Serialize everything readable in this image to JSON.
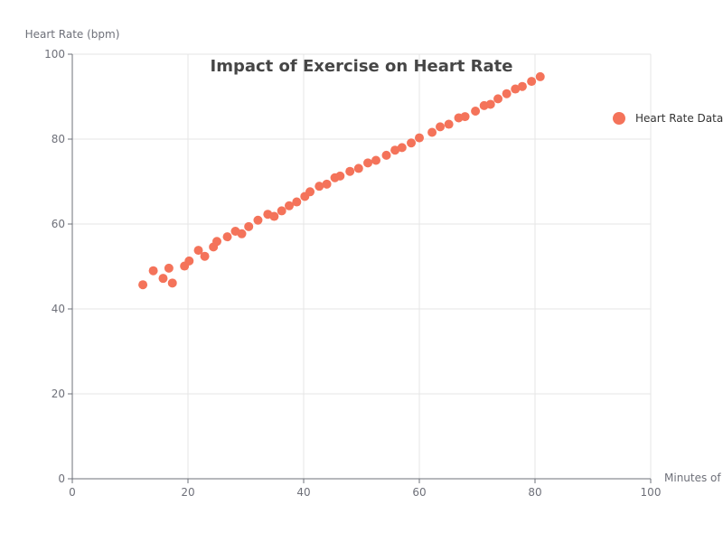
{
  "chart_data": {
    "type": "scatter",
    "title": "Impact of Exercise on Heart Rate",
    "xlabel": "Minutes of",
    "ylabel": "Heart Rate (bpm)",
    "xlim": [
      0,
      100
    ],
    "ylim": [
      0,
      100
    ],
    "x_ticks": [
      "0",
      "20",
      "40",
      "60",
      "80",
      "100"
    ],
    "y_ticks": [
      "0",
      "20",
      "40",
      "60",
      "80",
      "100"
    ],
    "grid": true,
    "legend_position": "right",
    "series": [
      {
        "name": "Heart Rate Data",
        "color": "#f4735a",
        "points": [
          [
            12.2,
            45.7
          ],
          [
            14.0,
            49.0
          ],
          [
            15.7,
            47.2
          ],
          [
            16.7,
            49.6
          ],
          [
            17.3,
            46.1
          ],
          [
            19.4,
            50.1
          ],
          [
            20.2,
            51.3
          ],
          [
            21.8,
            53.8
          ],
          [
            22.9,
            52.4
          ],
          [
            24.4,
            54.6
          ],
          [
            25.0,
            55.9
          ],
          [
            26.8,
            57.0
          ],
          [
            28.2,
            58.3
          ],
          [
            29.3,
            57.7
          ],
          [
            30.5,
            59.4
          ],
          [
            32.1,
            60.9
          ],
          [
            33.8,
            62.3
          ],
          [
            34.9,
            61.8
          ],
          [
            36.2,
            63.1
          ],
          [
            37.5,
            64.3
          ],
          [
            38.8,
            65.2
          ],
          [
            40.2,
            66.5
          ],
          [
            41.1,
            67.6
          ],
          [
            42.7,
            68.9
          ],
          [
            44.0,
            69.4
          ],
          [
            45.4,
            70.9
          ],
          [
            46.3,
            71.3
          ],
          [
            48.0,
            72.4
          ],
          [
            49.5,
            73.1
          ],
          [
            51.1,
            74.4
          ],
          [
            52.5,
            75.0
          ],
          [
            54.3,
            76.2
          ],
          [
            55.8,
            77.4
          ],
          [
            57.0,
            78.0
          ],
          [
            58.6,
            79.1
          ],
          [
            60.0,
            80.3
          ],
          [
            62.2,
            81.6
          ],
          [
            63.6,
            82.9
          ],
          [
            65.1,
            83.5
          ],
          [
            66.8,
            85.0
          ],
          [
            67.9,
            85.3
          ],
          [
            69.7,
            86.6
          ],
          [
            71.2,
            87.9
          ],
          [
            72.3,
            88.2
          ],
          [
            73.6,
            89.5
          ],
          [
            75.1,
            90.7
          ],
          [
            76.6,
            91.8
          ],
          [
            77.8,
            92.4
          ],
          [
            79.4,
            93.6
          ],
          [
            80.9,
            94.7
          ]
        ]
      }
    ]
  }
}
